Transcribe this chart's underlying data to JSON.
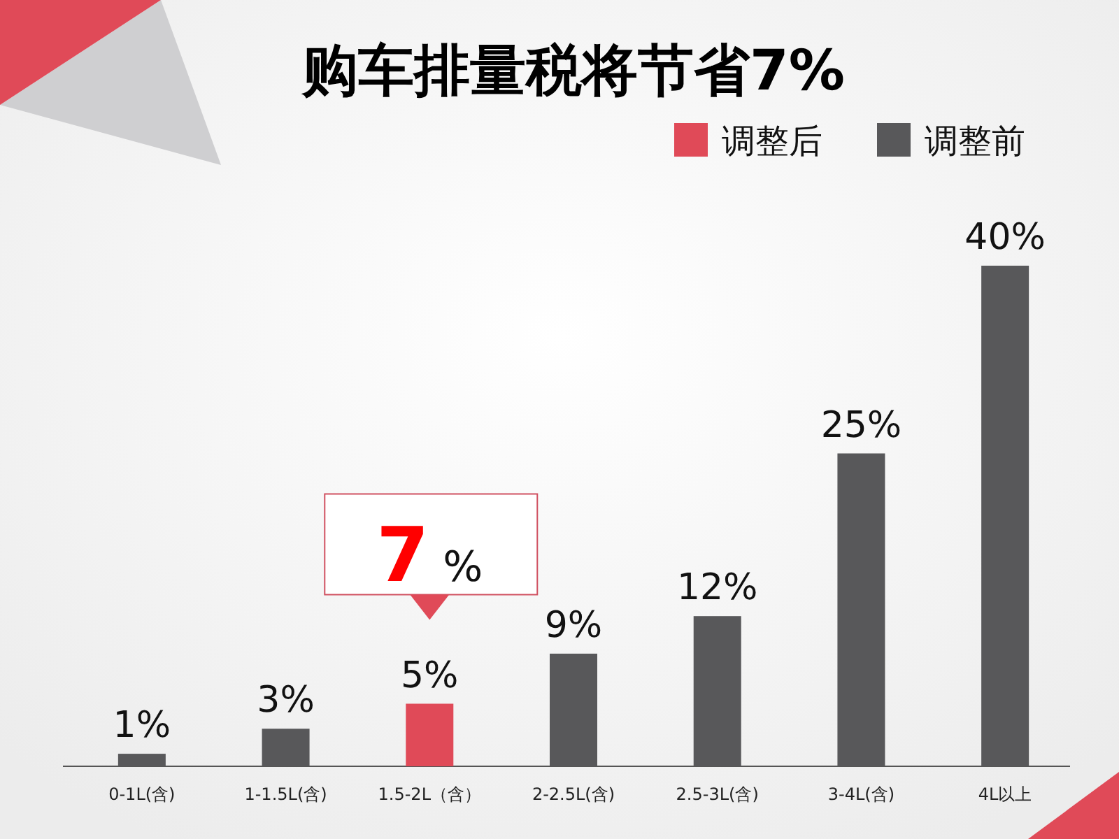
{
  "chart_data": {
    "type": "bar",
    "title": "购车排量税将节省7%",
    "categories": [
      "0-1L(含)",
      "1-1.5L(含)",
      "1.5-2L（含）",
      "2-2.5L(含)",
      "2.5-3L(含)",
      "3-4L(含)",
      "4L以上"
    ],
    "series": [
      {
        "name": "调整后",
        "color": "#e04a58",
        "values": [
          null,
          null,
          5,
          null,
          null,
          null,
          null
        ],
        "value_labels": [
          null,
          null,
          "5%",
          null,
          null,
          null,
          null
        ]
      },
      {
        "name": "调整前",
        "color": "#58585a",
        "values": [
          1,
          3,
          null,
          9,
          12,
          25,
          40
        ],
        "value_labels": [
          "1%",
          "3%",
          null,
          "9%",
          "12%",
          "25%",
          "40%"
        ]
      }
    ],
    "annotations": [
      {
        "text": "7 %",
        "x": "1.5-2L（含）",
        "y": 5
      }
    ],
    "legend": "top right"
  }
}
